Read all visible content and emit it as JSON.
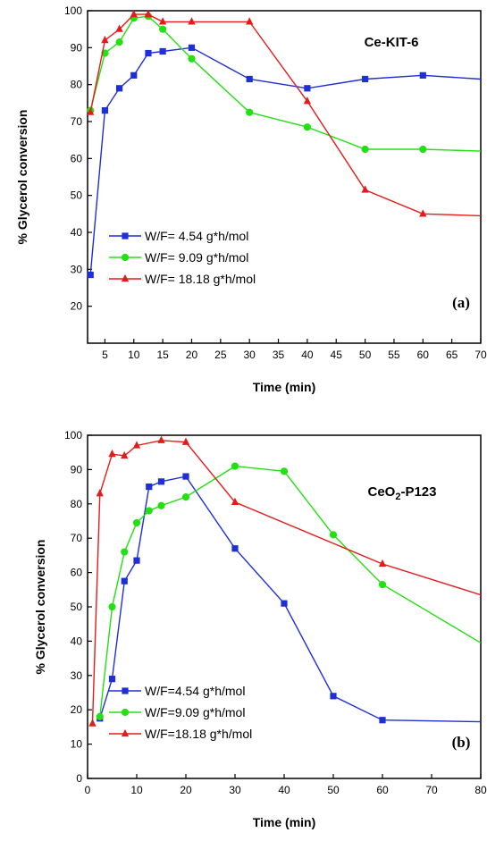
{
  "chart_data": [
    {
      "type": "line",
      "title": "Ce-KIT-6",
      "panel_label": "(a)",
      "xlabel": "Time (min)",
      "ylabel": "% Glycerol conversion",
      "xlim": [
        2,
        70
      ],
      "ylim": [
        10,
        100
      ],
      "x_ticks": [
        "5",
        "10",
        "15",
        "20",
        "25",
        "30",
        "35",
        "40",
        "45",
        "50",
        "55",
        "60",
        "65",
        "70"
      ],
      "y_ticks": [
        "20",
        "30",
        "40",
        "50",
        "60",
        "70",
        "80",
        "90",
        "100"
      ],
      "legend_position": "lower-left",
      "series": [
        {
          "name": "W/F= 4.54 g*h/mol",
          "color": "#1f2fd6",
          "marker": "square",
          "x": [
            2.5,
            5,
            7.5,
            10,
            12.5,
            15,
            20,
            30,
            40,
            50,
            60,
            70
          ],
          "y": [
            28.5,
            73,
            79,
            82.5,
            88.5,
            89,
            90,
            81.5,
            79,
            81.5,
            82.5,
            81.5
          ]
        },
        {
          "name": "W/F= 9.09 g*h/mol",
          "color": "#22e012",
          "marker": "circle",
          "x": [
            2.5,
            5,
            7.5,
            10,
            12.5,
            15,
            20,
            30,
            40,
            50,
            60,
            70
          ],
          "y": [
            73,
            88.5,
            91.5,
            98,
            98.5,
            95,
            87,
            72.5,
            68.5,
            62.5,
            62.5,
            62
          ]
        },
        {
          "name": "W/F= 18.18 g*h/mol",
          "color": "#e51b1b",
          "marker": "triangle",
          "x": [
            2.5,
            5,
            7.5,
            10,
            12.5,
            15,
            20,
            30,
            40,
            50,
            60,
            70
          ],
          "y": [
            72.5,
            92,
            95,
            99,
            99,
            97,
            97,
            97,
            75.5,
            51.5,
            45,
            44.5
          ]
        }
      ]
    },
    {
      "type": "line",
      "title": "CeO2-P123",
      "panel_label": "(b)",
      "xlabel": "Time (min)",
      "ylabel": "% Glycerol conversion",
      "xlim": [
        0,
        80
      ],
      "ylim": [
        0,
        100
      ],
      "x_ticks": [
        "0",
        "10",
        "20",
        "30",
        "40",
        "50",
        "60",
        "70",
        "80"
      ],
      "y_ticks": [
        "0",
        "10",
        "20",
        "30",
        "40",
        "50",
        "60",
        "70",
        "80",
        "90",
        "100"
      ],
      "legend_position": "lower-left",
      "series": [
        {
          "name": "W/F=4.54 g*h/mol",
          "color": "#1f2fd6",
          "marker": "square",
          "x": [
            2.5,
            5,
            7.5,
            10,
            12.5,
            15,
            20,
            30,
            40,
            50,
            60,
            80
          ],
          "y": [
            17.5,
            29,
            57.5,
            63.5,
            85,
            86.5,
            88,
            67,
            51,
            24,
            17,
            16.5
          ]
        },
        {
          "name": "W/F=9.09 g*h/mol",
          "color": "#22e012",
          "marker": "circle",
          "x": [
            2.5,
            5,
            7.5,
            10,
            12.5,
            15,
            20,
            30,
            40,
            50,
            60,
            80
          ],
          "y": [
            18,
            50,
            66,
            74.5,
            78,
            79.5,
            82,
            91,
            89.5,
            71,
            56.5,
            39.5
          ]
        },
        {
          "name": "W/F=18.18 g*h/mol",
          "color": "#e51b1b",
          "marker": "triangle",
          "x": [
            1,
            2.5,
            5,
            7.5,
            10,
            15,
            20,
            30,
            60,
            80
          ],
          "y": [
            16,
            83,
            94.5,
            94,
            97,
            98.5,
            98,
            80.5,
            62.5,
            53.5
          ]
        }
      ]
    }
  ]
}
